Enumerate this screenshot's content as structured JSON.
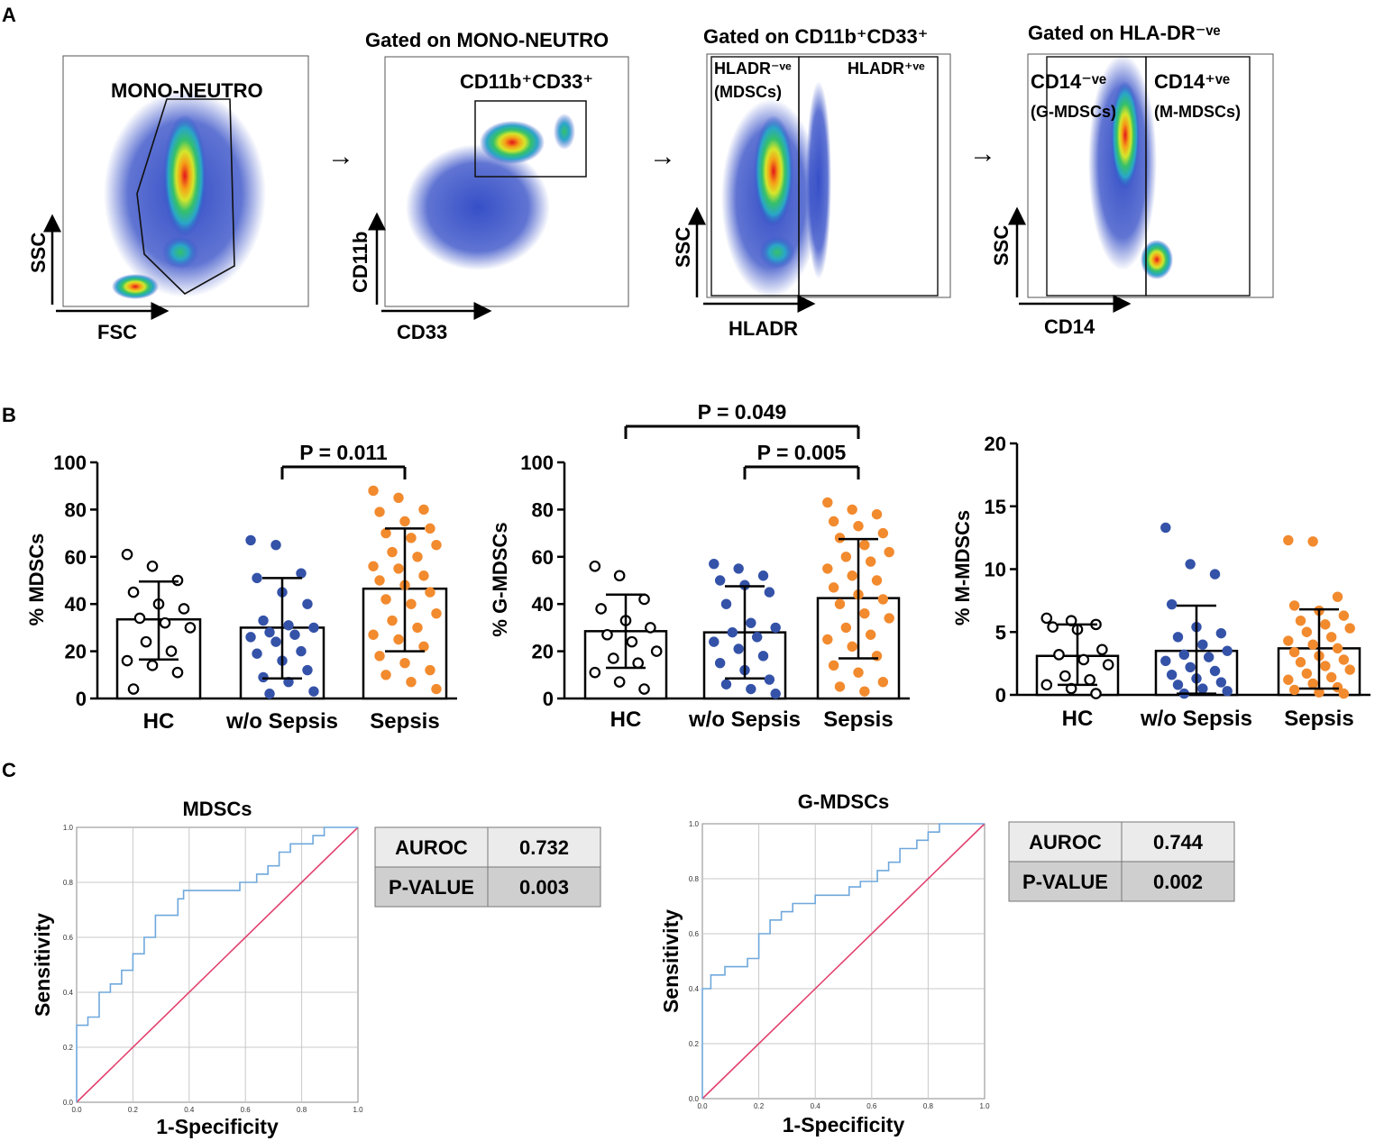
{
  "panel_labels": {
    "a": "A",
    "b": "B",
    "c": "C"
  },
  "flow": {
    "arrow": "→",
    "plots": [
      {
        "title": "",
        "gate_label": "MONO-NEUTRO",
        "x_label": "FSC",
        "y_label": "SSC"
      },
      {
        "title": "Gated on MONO-NEUTRO",
        "gate_label": "CD11b⁺CD33⁺",
        "x_label": "CD33",
        "y_label": "CD11b"
      },
      {
        "title": "Gated on CD11b⁺CD33⁺",
        "gate_left_label": "HLADR⁻ᵛᵉ",
        "gate_left_sub": "(MDSCs)",
        "gate_right_label": "HLADR⁺ᵛᵉ",
        "x_label": "HLADR",
        "y_label": "SSC"
      },
      {
        "title": "Gated on HLA-DR⁻ᵛᵉ",
        "gate_left_label": "CD14⁻ᵛᵉ",
        "gate_left_sub": "(G-MDSCs)",
        "gate_right_label": "CD14⁺ᵛᵉ",
        "gate_right_sub": "(M-MDSCs)",
        "x_label": "CD14",
        "y_label": "SSC"
      }
    ]
  },
  "chart_data": [
    {
      "type": "scatter-bar",
      "ylabel": "% MDSCs",
      "ylim": [
        0,
        100
      ],
      "yticks": [
        "0",
        "20",
        "40",
        "60",
        "80",
        "100"
      ],
      "categories": [
        "HC",
        "w/o Sepsis",
        "Sepsis"
      ],
      "series_colors": [
        "#ffffff",
        "#3452a8",
        "#f28a2e"
      ],
      "means": [
        33.5,
        30,
        46.5
      ],
      "sd_upper": [
        49.5,
        51,
        72
      ],
      "sd_lower": [
        16.5,
        8.5,
        20
      ],
      "points": [
        [
          61,
          56,
          50,
          45,
          40,
          38,
          34,
          32,
          30,
          24,
          20,
          16,
          14,
          11,
          4
        ],
        [
          67,
          65,
          53,
          51,
          45,
          40,
          33,
          31,
          30,
          28,
          27,
          26,
          24,
          20,
          19,
          16,
          12,
          9,
          7,
          3,
          2
        ],
        [
          88,
          85,
          80,
          79,
          75,
          72,
          70,
          68,
          65,
          62,
          60,
          56,
          55,
          52,
          50,
          48,
          45,
          42,
          40,
          36,
          33,
          30,
          27,
          25,
          22,
          18,
          15,
          12,
          10,
          7,
          4
        ]
      ],
      "comparisons": [
        {
          "from": 1,
          "to": 2,
          "label": "P = 0.011"
        }
      ]
    },
    {
      "type": "scatter-bar",
      "ylabel": "% G-MDSCs",
      "ylim": [
        0,
        100
      ],
      "yticks": [
        "0",
        "20",
        "40",
        "60",
        "80",
        "100"
      ],
      "categories": [
        "HC",
        "w/o Sepsis",
        "Sepsis"
      ],
      "series_colors": [
        "#ffffff",
        "#3452a8",
        "#f28a2e"
      ],
      "means": [
        28.5,
        28,
        42.5
      ],
      "sd_upper": [
        44,
        47.5,
        67.5
      ],
      "sd_lower": [
        13,
        8.5,
        17
      ],
      "points": [
        [
          56,
          52,
          42,
          38,
          33,
          30,
          27,
          24,
          20,
          17,
          15,
          11,
          7,
          4
        ],
        [
          57,
          55,
          52,
          50,
          48,
          45,
          40,
          32,
          30,
          28,
          26,
          24,
          21,
          18,
          15,
          12,
          8,
          6,
          4,
          2
        ],
        [
          83,
          80,
          78,
          75,
          73,
          70,
          68,
          65,
          62,
          60,
          58,
          55,
          52,
          50,
          47,
          44,
          42,
          40,
          36,
          34,
          30,
          27,
          25,
          22,
          18,
          14,
          11,
          7,
          5,
          3
        ]
      ],
      "comparisons": [
        {
          "from": 1,
          "to": 2,
          "label": "P = 0.005"
        },
        {
          "from": 0,
          "to": 2,
          "label": "P = 0.049"
        }
      ]
    },
    {
      "type": "scatter-bar",
      "ylabel": "% M-MDSCs",
      "ylim": [
        0,
        20
      ],
      "yticks": [
        "0",
        "5",
        "10",
        "15",
        "20"
      ],
      "categories": [
        "HC",
        "w/o Sepsis",
        "Sepsis"
      ],
      "series_colors": [
        "#ffffff",
        "#3452a8",
        "#f28a2e"
      ],
      "means": [
        3.1,
        3.5,
        3.7
      ],
      "sd_upper": [
        5.6,
        7.1,
        6.8
      ],
      "sd_lower": [
        0.8,
        0.1,
        0.5
      ],
      "points": [
        [
          6.1,
          5.9,
          5.6,
          5.4,
          5.2,
          3.6,
          3.2,
          2.8,
          2.4,
          1.5,
          1.2,
          0.8,
          0.5,
          0.1
        ],
        [
          13.3,
          10.4,
          9.6,
          7.2,
          5.4,
          4.9,
          4.6,
          4.0,
          3.5,
          3.2,
          3.0,
          2.7,
          2.2,
          1.9,
          1.6,
          1.3,
          1.0,
          0.8,
          0.5,
          0.3,
          0.1
        ],
        [
          12.3,
          12.2,
          7.8,
          7.1,
          6.7,
          6.3,
          5.9,
          5.6,
          5.3,
          5.0,
          4.6,
          4.3,
          4.0,
          3.7,
          3.4,
          3.1,
          2.8,
          2.6,
          2.3,
          2.0,
          1.7,
          1.4,
          1.2,
          0.9,
          0.6,
          0.4,
          0.2,
          0.1
        ]
      ],
      "comparisons": []
    },
    {
      "type": "roc",
      "title": "MDSCs",
      "xlabel": "1-Specificity",
      "ylabel": "Sensitivity",
      "ticks": [
        "0.0",
        "0.2",
        "0.4",
        "0.6",
        "0.8",
        "1.0"
      ],
      "curve_color": "#6fa8dc",
      "reference_color": "#e2406e",
      "curve": [
        [
          0,
          0
        ],
        [
          0,
          0.28
        ],
        [
          0.04,
          0.28
        ],
        [
          0.04,
          0.31
        ],
        [
          0.08,
          0.31
        ],
        [
          0.08,
          0.4
        ],
        [
          0.12,
          0.4
        ],
        [
          0.12,
          0.43
        ],
        [
          0.16,
          0.43
        ],
        [
          0.16,
          0.48
        ],
        [
          0.2,
          0.48
        ],
        [
          0.2,
          0.54
        ],
        [
          0.24,
          0.54
        ],
        [
          0.24,
          0.6
        ],
        [
          0.28,
          0.6
        ],
        [
          0.28,
          0.68
        ],
        [
          0.36,
          0.68
        ],
        [
          0.36,
          0.74
        ],
        [
          0.38,
          0.74
        ],
        [
          0.38,
          0.77
        ],
        [
          0.58,
          0.77
        ],
        [
          0.58,
          0.8
        ],
        [
          0.64,
          0.8
        ],
        [
          0.64,
          0.83
        ],
        [
          0.68,
          0.83
        ],
        [
          0.68,
          0.86
        ],
        [
          0.72,
          0.86
        ],
        [
          0.72,
          0.91
        ],
        [
          0.76,
          0.91
        ],
        [
          0.76,
          0.94
        ],
        [
          0.84,
          0.94
        ],
        [
          0.84,
          0.97
        ],
        [
          0.88,
          0.97
        ],
        [
          0.88,
          1.0
        ],
        [
          1.0,
          1.0
        ]
      ],
      "stats": [
        {
          "label": "AUROC",
          "value": "0.732"
        },
        {
          "label": "P-VALUE",
          "value": "0.003"
        }
      ]
    },
    {
      "type": "roc",
      "title": "G-MDSCs",
      "xlabel": "1-Specificity",
      "ylabel": "Sensitivity",
      "ticks": [
        "0.0",
        "0.2",
        "0.4",
        "0.6",
        "0.8",
        "1.0"
      ],
      "curve_color": "#6fa8dc",
      "reference_color": "#e2406e",
      "curve": [
        [
          0,
          0
        ],
        [
          0,
          0.4
        ],
        [
          0.03,
          0.4
        ],
        [
          0.03,
          0.45
        ],
        [
          0.08,
          0.45
        ],
        [
          0.08,
          0.48
        ],
        [
          0.16,
          0.48
        ],
        [
          0.16,
          0.51
        ],
        [
          0.2,
          0.51
        ],
        [
          0.2,
          0.6
        ],
        [
          0.24,
          0.6
        ],
        [
          0.24,
          0.65
        ],
        [
          0.28,
          0.65
        ],
        [
          0.28,
          0.68
        ],
        [
          0.32,
          0.68
        ],
        [
          0.32,
          0.71
        ],
        [
          0.4,
          0.71
        ],
        [
          0.4,
          0.74
        ],
        [
          0.52,
          0.74
        ],
        [
          0.52,
          0.77
        ],
        [
          0.56,
          0.77
        ],
        [
          0.56,
          0.79
        ],
        [
          0.62,
          0.79
        ],
        [
          0.62,
          0.83
        ],
        [
          0.66,
          0.83
        ],
        [
          0.66,
          0.86
        ],
        [
          0.7,
          0.86
        ],
        [
          0.7,
          0.91
        ],
        [
          0.76,
          0.91
        ],
        [
          0.76,
          0.94
        ],
        [
          0.8,
          0.94
        ],
        [
          0.8,
          0.97
        ],
        [
          0.84,
          0.97
        ],
        [
          0.84,
          1.0
        ],
        [
          1.0,
          1.0
        ]
      ],
      "stats": [
        {
          "label": "AUROC",
          "value": "0.744"
        },
        {
          "label": "P-VALUE",
          "value": "0.002"
        }
      ]
    }
  ]
}
